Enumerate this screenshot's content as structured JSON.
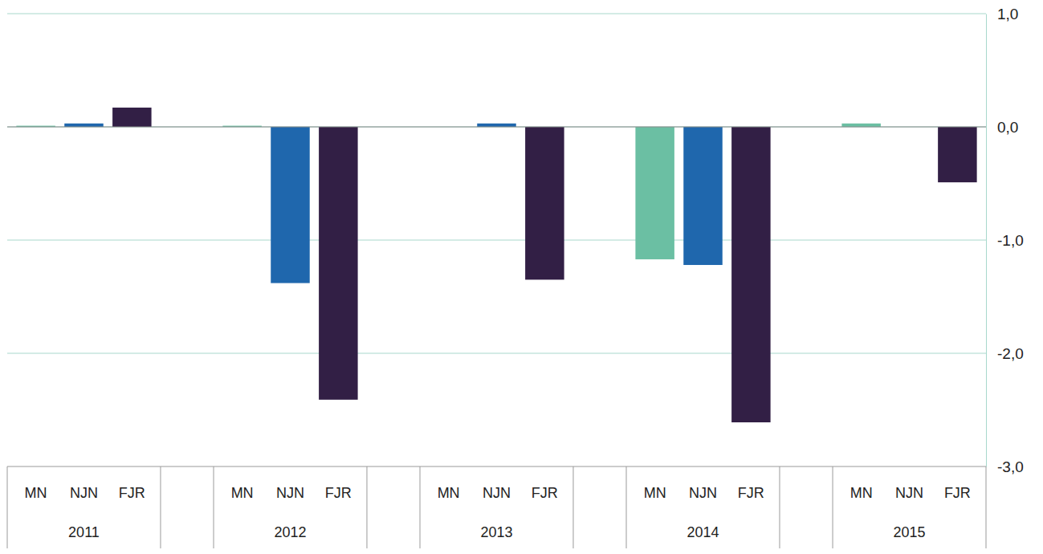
{
  "chart_data": {
    "type": "bar",
    "categories": [
      "2011",
      "2012",
      "2013",
      "2014",
      "2015"
    ],
    "series": [
      {
        "name": "MN",
        "color": "#6bbfa3",
        "values": [
          0.01,
          0.01,
          0,
          -1.17,
          0.03
        ]
      },
      {
        "name": "NJN",
        "color": "#1f67ad",
        "values": [
          0.03,
          -1.38,
          0.03,
          -1.22,
          0
        ]
      },
      {
        "name": "FJR",
        "color": "#321f45",
        "values": [
          0.17,
          -2.41,
          -1.35,
          -2.61,
          -0.49
        ]
      }
    ],
    "ylim": [
      -3,
      1
    ],
    "yticks": [
      {
        "value": 1,
        "label": "1,0"
      },
      {
        "value": 0,
        "label": "0,0"
      },
      {
        "value": -1,
        "label": "-1,0"
      },
      {
        "value": -2,
        "label": "-2,0"
      },
      {
        "value": -3,
        "label": "-3,0"
      }
    ],
    "grid": true
  }
}
